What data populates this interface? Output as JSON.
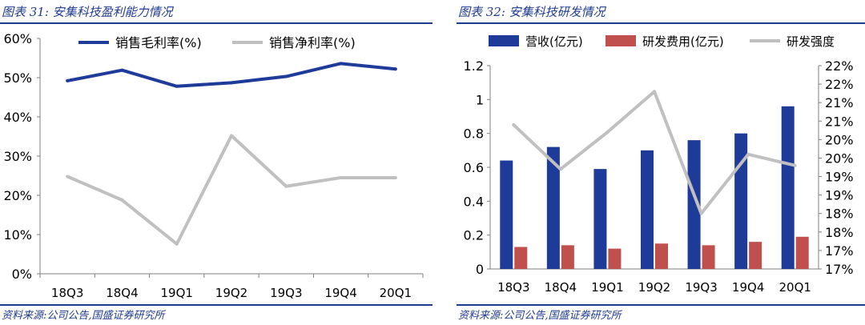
{
  "colors": {
    "accent": "#1f3b8f",
    "navy": "#1f3b9a",
    "gray": "#c0c0c0",
    "red": "#c0504d"
  },
  "left": {
    "title": "图表 31:  安集科技盈利能力情况",
    "source": "资料来源:公司公告,国盛证券研究所"
  },
  "right": {
    "title": "图表 32:  安集科技研发情况",
    "source": "资料来源:公司公告,国盛证券研究所"
  },
  "chart_data": [
    {
      "type": "line",
      "categories": [
        "18Q3",
        "18Q4",
        "19Q1",
        "19Q2",
        "19Q3",
        "19Q4",
        "20Q1"
      ],
      "series": [
        {
          "name": "销售毛利率(%)",
          "values": [
            49.2,
            51.9,
            47.8,
            48.7,
            50.3,
            53.6,
            52.2
          ],
          "color": "#1f3b9a"
        },
        {
          "name": "销售净利率(%)",
          "values": [
            24.8,
            18.8,
            7.6,
            35.2,
            22.3,
            24.5,
            24.5
          ],
          "color": "#c0c0c0"
        }
      ],
      "ylim": [
        0,
        60
      ],
      "yticks": [
        "0%",
        "10%",
        "20%",
        "30%",
        "40%",
        "50%",
        "60%"
      ],
      "legend": "top",
      "grid": false
    },
    {
      "type": "bar",
      "categories": [
        "18Q3",
        "18Q4",
        "19Q1",
        "19Q2",
        "19Q3",
        "19Q4",
        "20Q1"
      ],
      "series": [
        {
          "name": "营收(亿元)",
          "values": [
            0.64,
            0.72,
            0.59,
            0.7,
            0.76,
            0.8,
            0.96
          ],
          "color": "#1f3b9a",
          "axis": "left"
        },
        {
          "name": "研发费用(亿元)",
          "values": [
            0.13,
            0.14,
            0.12,
            0.15,
            0.14,
            0.16,
            0.19
          ],
          "color": "#c0504d",
          "axis": "left"
        },
        {
          "name": "研发强度",
          "type": "line",
          "values": [
            20.9,
            19.7,
            20.7,
            21.8,
            18.5,
            20.1,
            19.8
          ],
          "color": "#c0c0c0",
          "axis": "right"
        }
      ],
      "ylim": [
        0,
        1.2
      ],
      "yticks": [
        "0",
        "0.2",
        "0.4",
        "0.6",
        "0.8",
        "1",
        "1.2"
      ],
      "y2lim": [
        17,
        22.5
      ],
      "y2ticks": [
        "17%",
        "17%",
        "18%",
        "18%",
        "19%",
        "19%",
        "20%",
        "20%",
        "21%",
        "21%",
        "22%",
        "22%"
      ],
      "legend": "top",
      "grid": false
    }
  ]
}
